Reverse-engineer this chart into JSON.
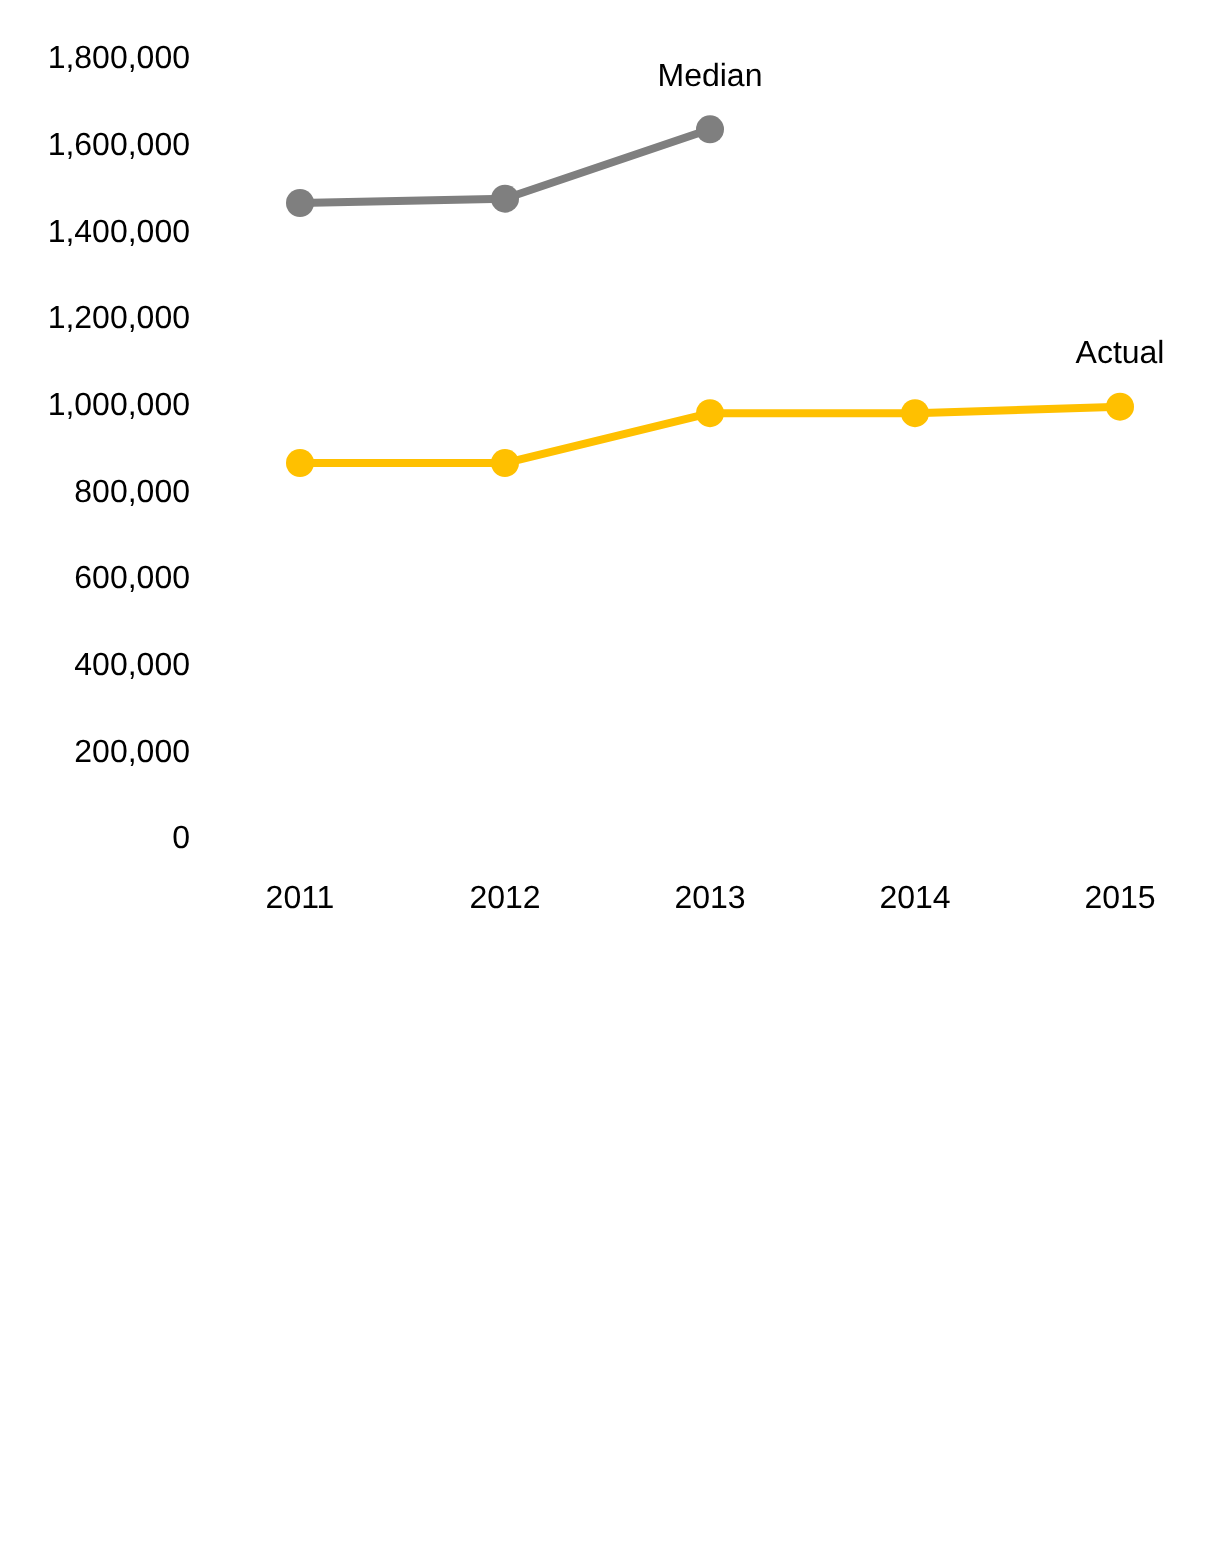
{
  "chart_data": {
    "type": "line",
    "categories": [
      "2011",
      "2012",
      "2013",
      "2014",
      "2015"
    ],
    "series": [
      {
        "name": "Median",
        "color": "#7f7f7f",
        "values": [
          1470000,
          1480000,
          1640000,
          null,
          null
        ]
      },
      {
        "name": "Actual",
        "color": "#ffc000",
        "values": [
          870000,
          870000,
          985000,
          985000,
          1000000
        ]
      }
    ],
    "ylim": [
      0,
      1800000
    ],
    "yticks": [
      0,
      {
        "value": 200000,
        "label": "200,000"
      },
      {
        "value": 400000,
        "label": "400,000"
      },
      {
        "value": 600000,
        "label": "600,000"
      },
      {
        "value": 800000,
        "label": "800,000"
      },
      {
        "value": 1000000,
        "label": "1,000,000"
      },
      {
        "value": 1200000,
        "label": "1,200,000"
      },
      {
        "value": 1400000,
        "label": "1,400,000"
      },
      {
        "value": 1600000,
        "label": "1,600,000"
      },
      {
        "value": 1800000,
        "label": "1,800,000"
      }
    ],
    "marker": "circle"
  }
}
